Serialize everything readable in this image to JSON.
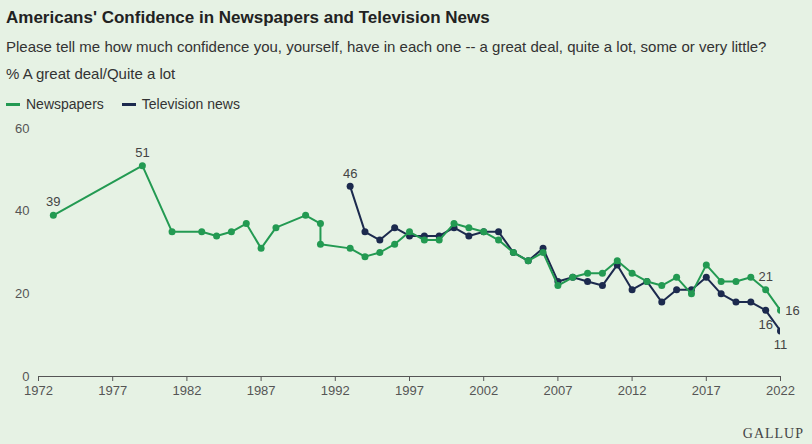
{
  "chart_data": {
    "type": "line",
    "title": "Americans' Confidence in Newspapers and Television News",
    "subtitle": [
      "Please tell me how much confidence you, yourself, have in each one -- a great deal, quite a lot, some or very little?",
      "% A great deal/Quite a lot"
    ],
    "caption": "GALLUP",
    "series": [
      {
        "name": "Newspapers",
        "color": "#239a52",
        "marker": "circle",
        "x": [
          1973,
          1979,
          1981,
          1983,
          1984,
          1985,
          1986,
          1987,
          1988,
          1990,
          1991,
          1991,
          1993,
          1994,
          1995,
          1996,
          1997,
          1998,
          1999,
          2000,
          2001,
          2002,
          2003,
          2004,
          2005,
          2006,
          2007,
          2008,
          2009,
          2010,
          2011,
          2012,
          2013,
          2014,
          2015,
          2016,
          2017,
          2018,
          2019,
          2020,
          2021,
          2022
        ],
        "values": [
          39,
          51,
          35,
          35,
          34,
          35,
          37,
          31,
          36,
          39,
          37,
          32,
          31,
          29,
          30,
          32,
          35,
          33,
          33,
          37,
          36,
          35,
          33,
          30,
          28,
          30,
          22,
          24,
          25,
          25,
          28,
          25,
          23,
          22,
          24,
          20,
          27,
          23,
          23,
          24,
          21,
          16
        ]
      },
      {
        "name": "Television news",
        "color": "#1c2a4e",
        "marker": "circle",
        "x": [
          1993,
          1994,
          1995,
          1996,
          1997,
          1998,
          1999,
          2000,
          2001,
          2002,
          2003,
          2004,
          2005,
          2006,
          2007,
          2008,
          2009,
          2010,
          2011,
          2012,
          2013,
          2014,
          2015,
          2016,
          2017,
          2018,
          2019,
          2020,
          2021,
          2022
        ],
        "values": [
          46,
          35,
          33,
          36,
          34,
          34,
          34,
          36,
          34,
          35,
          35,
          30,
          28,
          31,
          23,
          24,
          23,
          22,
          27,
          21,
          23,
          18,
          21,
          21,
          24,
          20,
          18,
          18,
          16,
          11
        ]
      }
    ],
    "annotations": [
      {
        "series": "Newspapers",
        "x": 1973,
        "y": 39,
        "label": "39"
      },
      {
        "series": "Newspapers",
        "x": 1979,
        "y": 51,
        "label": "51"
      },
      {
        "series": "Television news",
        "x": 1993,
        "y": 46,
        "label": "46"
      },
      {
        "series": "Newspapers",
        "x": 2021,
        "y": 21,
        "label": "21"
      },
      {
        "series": "Newspapers",
        "x": 2022,
        "y": 16,
        "label": "16"
      },
      {
        "series": "Television news",
        "x": 2021,
        "y": 16,
        "label": "16"
      },
      {
        "series": "Television news",
        "x": 2022,
        "y": 11,
        "label": "11"
      }
    ],
    "xlim": [
      1972,
      2022
    ],
    "xticks": [
      1972,
      1977,
      1982,
      1987,
      1992,
      1997,
      2002,
      2007,
      2012,
      2017,
      2022
    ],
    "ylim": [
      0,
      60
    ],
    "yticks": [
      0,
      20,
      40,
      60
    ],
    "grid": false,
    "legend": "top-left"
  }
}
